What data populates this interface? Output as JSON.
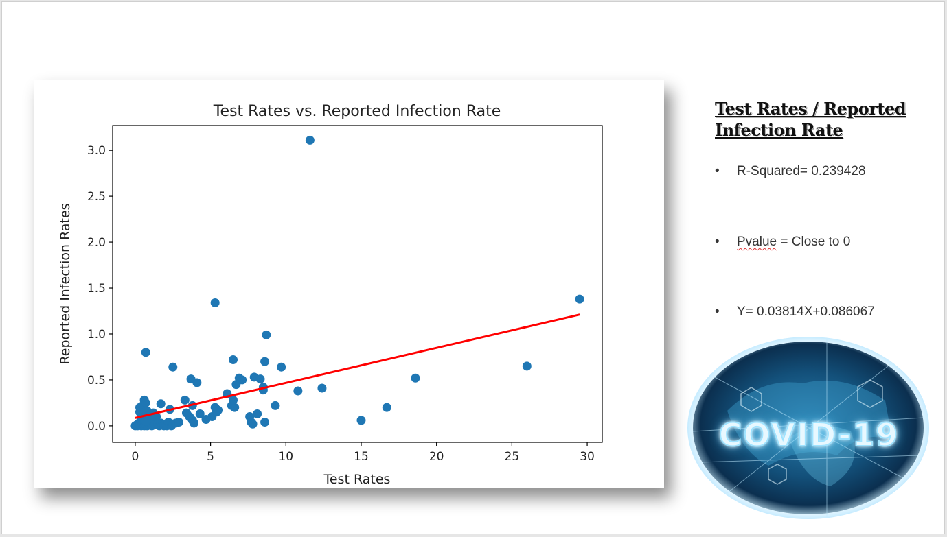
{
  "chart_data": {
    "type": "scatter",
    "title": "Test Rates vs. Reported Infection Rate",
    "xlabel": "Test Rates",
    "ylabel": "Reported Infection Rates",
    "xlim": [
      -1.5,
      31
    ],
    "ylim": [
      -0.18,
      3.27
    ],
    "xticks": [
      0,
      5,
      10,
      15,
      20,
      25,
      30
    ],
    "yticks": [
      0.0,
      0.5,
      1.0,
      1.5,
      2.0,
      2.5,
      3.0
    ],
    "grid": false,
    "marker_color": "#1f77b4",
    "line_color": "#ff0000",
    "points": {
      "x": [
        0.0,
        0.1,
        0.15,
        0.2,
        0.25,
        0.3,
        0.35,
        0.4,
        0.45,
        0.5,
        0.55,
        0.6,
        0.65,
        0.7,
        0.75,
        0.8,
        0.9,
        1.0,
        1.1,
        1.2,
        1.3,
        1.5,
        1.6,
        1.7,
        1.8,
        1.9,
        2.0,
        2.1,
        2.2,
        2.3,
        2.4,
        2.5,
        2.7,
        2.9,
        0.3,
        0.5,
        0.6,
        0.7,
        0.8,
        1.0,
        1.2,
        1.4,
        0.6,
        0.7,
        0.3,
        1.7,
        2.3,
        3.3,
        3.6,
        3.4,
        3.8,
        3.9,
        3.7,
        3.8,
        4.1,
        4.3,
        4.7,
        5.1,
        5.3,
        5.5,
        5.4,
        6.1,
        6.4,
        6.5,
        6.6,
        6.7,
        6.5,
        6.9,
        7.1,
        7.6,
        7.7,
        7.8,
        7.9,
        8.1,
        8.3,
        8.5,
        8.6,
        8.7,
        8.6,
        8.5,
        9.3,
        9.7,
        10.8,
        12.4,
        11.6,
        15.0,
        16.7,
        18.6,
        26.0,
        29.5,
        5.3,
        2.5,
        0.7
      ],
      "y": [
        0.0,
        0.01,
        0.0,
        0.02,
        0.03,
        0.01,
        0.05,
        0.0,
        0.02,
        0.1,
        0.04,
        0.0,
        0.03,
        0.01,
        0.06,
        0.0,
        0.02,
        0.03,
        0.0,
        0.05,
        0.01,
        0.02,
        0.0,
        0.03,
        0.01,
        0.0,
        0.02,
        0.0,
        0.04,
        0.01,
        0.0,
        0.02,
        0.03,
        0.04,
        0.2,
        0.22,
        0.28,
        0.25,
        0.16,
        0.12,
        0.14,
        0.1,
        0.08,
        0.05,
        0.15,
        0.24,
        0.18,
        0.28,
        0.1,
        0.14,
        0.06,
        0.03,
        0.51,
        0.22,
        0.47,
        0.13,
        0.07,
        0.1,
        0.2,
        0.17,
        0.15,
        0.35,
        0.22,
        0.72,
        0.2,
        0.45,
        0.28,
        0.52,
        0.5,
        0.1,
        0.04,
        0.02,
        0.53,
        0.13,
        0.51,
        0.42,
        0.04,
        0.99,
        0.7,
        0.39,
        0.22,
        0.64,
        0.38,
        0.41,
        3.11,
        0.06,
        0.2,
        0.52,
        0.65,
        1.38,
        1.34,
        0.64,
        0.8
      ]
    },
    "fit": {
      "slope": 0.03814,
      "intercept": 0.086067,
      "x_range": [
        0,
        29.5
      ]
    }
  },
  "side": {
    "title_line1": "Test Rates / Reported",
    "title_line2": "Infection Rate",
    "bullets": [
      {
        "prefix": "R-Squared= 0.239428",
        "squiggle": "",
        "suffix": ""
      },
      {
        "prefix": "",
        "squiggle": "Pvalue",
        "suffix": " = Close to 0"
      },
      {
        "prefix": "Y= 0.03814X+0.086067",
        "squiggle": "",
        "suffix": ""
      }
    ],
    "bullet_char": "•"
  },
  "image_caption": "COVID-19"
}
